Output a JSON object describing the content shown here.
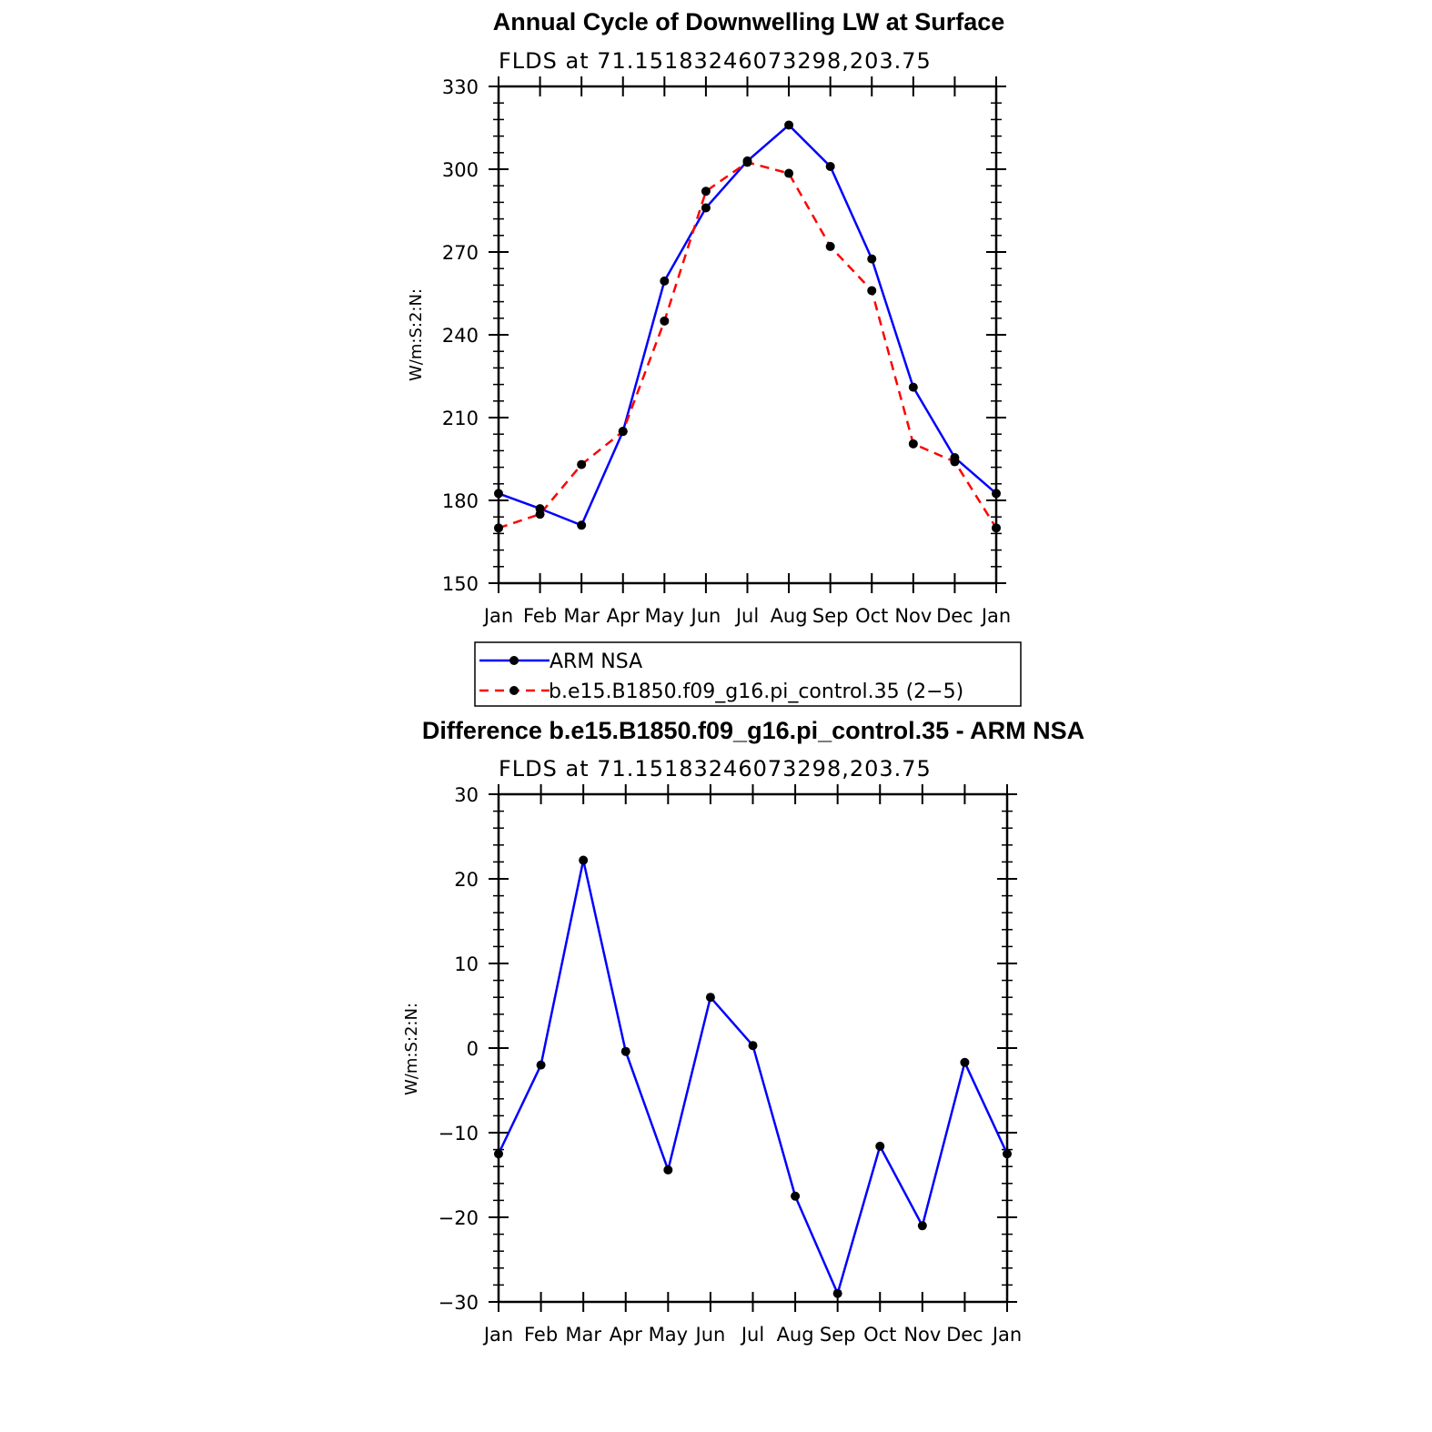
{
  "chart_data": [
    {
      "type": "line",
      "title": "Annual Cycle of Downwelling LW at Surface",
      "subtitle": "FLDS at 71.15183246073298,203.75",
      "xlabel": "",
      "ylabel": "W/m:S:2:N:",
      "categories": [
        "Jan",
        "Feb",
        "Mar",
        "Apr",
        "May",
        "Jun",
        "Jul",
        "Aug",
        "Sep",
        "Oct",
        "Nov",
        "Dec",
        "Jan"
      ],
      "ylim": [
        150,
        330
      ],
      "yticks": [
        150,
        180,
        210,
        240,
        270,
        300,
        330
      ],
      "series": [
        {
          "name": "ARM NSA",
          "color": "#0000ff",
          "dash": "solid",
          "values": [
            182.5,
            177,
            171,
            205,
            259.5,
            286,
            303,
            316,
            301,
            267.5,
            221,
            195.5,
            182.5
          ]
        },
        {
          "name": "b.e15.B1850.f09_g16.pi_control.35 (2−5)",
          "color": "#ff0000",
          "dash": "dashed",
          "values": [
            170,
            175,
            193,
            205,
            245,
            292,
            302.5,
            298.5,
            272,
            256,
            200.5,
            194,
            170
          ]
        }
      ],
      "legend": [
        "ARM NSA",
        "b.e15.B1850.f09_g16.pi_control.35 (2−5)"
      ]
    },
    {
      "type": "line",
      "title": "Difference b.e15.B1850.f09_g16.pi_control.35 - ARM NSA",
      "subtitle": "FLDS at 71.15183246073298,203.75",
      "xlabel": "",
      "ylabel": "W/m:S:2:N:",
      "categories": [
        "Jan",
        "Feb",
        "Mar",
        "Apr",
        "May",
        "Jun",
        "Jul",
        "Aug",
        "Sep",
        "Oct",
        "Nov",
        "Dec",
        "Jan"
      ],
      "ylim": [
        -30,
        30
      ],
      "yticks": [
        -30,
        -20,
        -10,
        0,
        10,
        20,
        30
      ],
      "series": [
        {
          "name": "Difference",
          "color": "#0000ff",
          "dash": "solid",
          "values": [
            -12.5,
            -2,
            22.2,
            -0.4,
            -14.4,
            6,
            0.3,
            -17.5,
            -29,
            -11.6,
            -21,
            -1.7,
            -12.5
          ]
        }
      ]
    }
  ]
}
